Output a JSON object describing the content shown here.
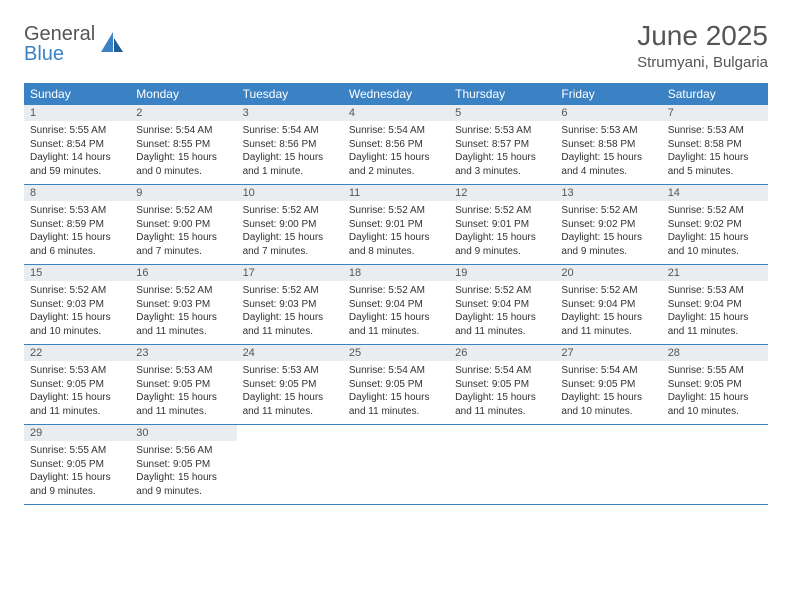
{
  "brand": {
    "word1": "General",
    "word2": "Blue"
  },
  "title": "June 2025",
  "location": "Strumyani, Bulgaria",
  "colors": {
    "header_bar": "#3b82c4",
    "day_num_bg": "#e9edf0",
    "text": "#333333",
    "muted": "#555555",
    "row_border": "#3b82c4",
    "background": "#ffffff"
  },
  "weekdays": [
    "Sunday",
    "Monday",
    "Tuesday",
    "Wednesday",
    "Thursday",
    "Friday",
    "Saturday"
  ],
  "weeks": [
    [
      {
        "n": "1",
        "sr": "5:55 AM",
        "ss": "8:54 PM",
        "dl": "14 hours and 59 minutes."
      },
      {
        "n": "2",
        "sr": "5:54 AM",
        "ss": "8:55 PM",
        "dl": "15 hours and 0 minutes."
      },
      {
        "n": "3",
        "sr": "5:54 AM",
        "ss": "8:56 PM",
        "dl": "15 hours and 1 minute."
      },
      {
        "n": "4",
        "sr": "5:54 AM",
        "ss": "8:56 PM",
        "dl": "15 hours and 2 minutes."
      },
      {
        "n": "5",
        "sr": "5:53 AM",
        "ss": "8:57 PM",
        "dl": "15 hours and 3 minutes."
      },
      {
        "n": "6",
        "sr": "5:53 AM",
        "ss": "8:58 PM",
        "dl": "15 hours and 4 minutes."
      },
      {
        "n": "7",
        "sr": "5:53 AM",
        "ss": "8:58 PM",
        "dl": "15 hours and 5 minutes."
      }
    ],
    [
      {
        "n": "8",
        "sr": "5:53 AM",
        "ss": "8:59 PM",
        "dl": "15 hours and 6 minutes."
      },
      {
        "n": "9",
        "sr": "5:52 AM",
        "ss": "9:00 PM",
        "dl": "15 hours and 7 minutes."
      },
      {
        "n": "10",
        "sr": "5:52 AM",
        "ss": "9:00 PM",
        "dl": "15 hours and 7 minutes."
      },
      {
        "n": "11",
        "sr": "5:52 AM",
        "ss": "9:01 PM",
        "dl": "15 hours and 8 minutes."
      },
      {
        "n": "12",
        "sr": "5:52 AM",
        "ss": "9:01 PM",
        "dl": "15 hours and 9 minutes."
      },
      {
        "n": "13",
        "sr": "5:52 AM",
        "ss": "9:02 PM",
        "dl": "15 hours and 9 minutes."
      },
      {
        "n": "14",
        "sr": "5:52 AM",
        "ss": "9:02 PM",
        "dl": "15 hours and 10 minutes."
      }
    ],
    [
      {
        "n": "15",
        "sr": "5:52 AM",
        "ss": "9:03 PM",
        "dl": "15 hours and 10 minutes."
      },
      {
        "n": "16",
        "sr": "5:52 AM",
        "ss": "9:03 PM",
        "dl": "15 hours and 11 minutes."
      },
      {
        "n": "17",
        "sr": "5:52 AM",
        "ss": "9:03 PM",
        "dl": "15 hours and 11 minutes."
      },
      {
        "n": "18",
        "sr": "5:52 AM",
        "ss": "9:04 PM",
        "dl": "15 hours and 11 minutes."
      },
      {
        "n": "19",
        "sr": "5:52 AM",
        "ss": "9:04 PM",
        "dl": "15 hours and 11 minutes."
      },
      {
        "n": "20",
        "sr": "5:52 AM",
        "ss": "9:04 PM",
        "dl": "15 hours and 11 minutes."
      },
      {
        "n": "21",
        "sr": "5:53 AM",
        "ss": "9:04 PM",
        "dl": "15 hours and 11 minutes."
      }
    ],
    [
      {
        "n": "22",
        "sr": "5:53 AM",
        "ss": "9:05 PM",
        "dl": "15 hours and 11 minutes."
      },
      {
        "n": "23",
        "sr": "5:53 AM",
        "ss": "9:05 PM",
        "dl": "15 hours and 11 minutes."
      },
      {
        "n": "24",
        "sr": "5:53 AM",
        "ss": "9:05 PM",
        "dl": "15 hours and 11 minutes."
      },
      {
        "n": "25",
        "sr": "5:54 AM",
        "ss": "9:05 PM",
        "dl": "15 hours and 11 minutes."
      },
      {
        "n": "26",
        "sr": "5:54 AM",
        "ss": "9:05 PM",
        "dl": "15 hours and 11 minutes."
      },
      {
        "n": "27",
        "sr": "5:54 AM",
        "ss": "9:05 PM",
        "dl": "15 hours and 10 minutes."
      },
      {
        "n": "28",
        "sr": "5:55 AM",
        "ss": "9:05 PM",
        "dl": "15 hours and 10 minutes."
      }
    ],
    [
      {
        "n": "29",
        "sr": "5:55 AM",
        "ss": "9:05 PM",
        "dl": "15 hours and 9 minutes."
      },
      {
        "n": "30",
        "sr": "5:56 AM",
        "ss": "9:05 PM",
        "dl": "15 hours and 9 minutes."
      },
      {
        "empty": true
      },
      {
        "empty": true
      },
      {
        "empty": true
      },
      {
        "empty": true
      },
      {
        "empty": true
      }
    ]
  ],
  "labels": {
    "sunrise": "Sunrise: ",
    "sunset": "Sunset: ",
    "daylight": "Daylight: "
  }
}
